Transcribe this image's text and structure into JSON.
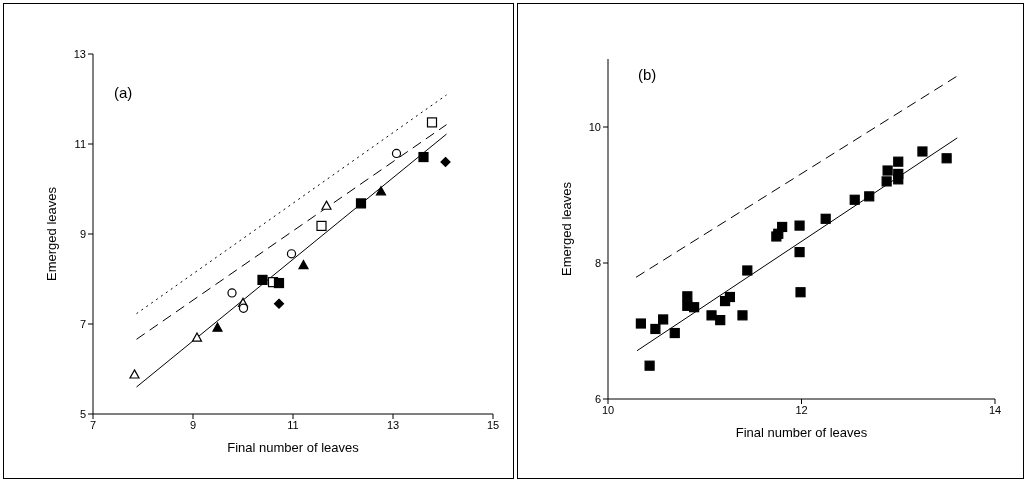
{
  "chart_data": [
    {
      "type": "scatter",
      "xlabel": "Final number of leaves",
      "ylabel": "Emerged leaves",
      "annotations": [
        "(a)"
      ],
      "xlim": [
        7,
        15
      ],
      "xticks": [
        7,
        9,
        11,
        13,
        15
      ],
      "ylim": [
        5,
        13
      ],
      "yticks": [
        5,
        7,
        9,
        11,
        13
      ],
      "series": [
        {
          "marker": "triangle",
          "color": "#ffffff",
          "x": [
            7.83,
            9.08,
            10.0,
            11.67
          ],
          "values": [
            5.88,
            6.7,
            7.47,
            9.63
          ]
        },
        {
          "marker": "circle",
          "color": "#ffffff",
          "x": [
            9.78,
            10.01,
            10.97,
            13.07
          ],
          "values": [
            7.69,
            7.35,
            8.56,
            10.79
          ]
        },
        {
          "marker": "square",
          "color": "#ffffff",
          "x": [
            10.6,
            11.57,
            13.78
          ],
          "values": [
            7.93,
            9.18,
            11.48
          ]
        },
        {
          "marker": "square",
          "color": "#000000",
          "x": [
            10.39,
            10.72,
            12.36,
            13.61
          ],
          "values": [
            7.98,
            7.91,
            9.68,
            10.71
          ]
        },
        {
          "marker": "triangle",
          "color": "#000000",
          "x": [
            9.49,
            11.21,
            12.76
          ],
          "values": [
            6.92,
            8.31,
            9.95
          ]
        },
        {
          "marker": "diamond",
          "color": "#000000",
          "x": [
            10.72,
            14.05
          ],
          "values": [
            7.45,
            10.6
          ]
        },
        {
          "type": "line",
          "line_style": "solid",
          "color": "#000000",
          "x": [
            7.87,
            14.07
          ],
          "values": [
            5.6,
            11.22
          ]
        },
        {
          "type": "line",
          "line_style": "dashed",
          "color": "#000000",
          "x": [
            7.87,
            14.07
          ],
          "values": [
            6.66,
            11.43
          ]
        },
        {
          "type": "line",
          "line_style": "dotted",
          "color": "#000000",
          "x": [
            7.87,
            14.07
          ],
          "values": [
            7.23,
            12.09
          ]
        }
      ]
    },
    {
      "type": "scatter",
      "xlabel": "Final number of leaves",
      "ylabel": "Emerged leaves",
      "annotations": [
        "(b)"
      ],
      "xlim": [
        10,
        14
      ],
      "xticks": [
        10,
        12,
        14
      ],
      "ylim": [
        6,
        11
      ],
      "yticks": [
        6,
        8,
        10
      ],
      "series": [
        {
          "marker": "square",
          "color": "#000000",
          "x": [
            10.34,
            10.43,
            10.49,
            10.57,
            10.69,
            10.82,
            10.82,
            10.89,
            11.07,
            11.16,
            11.21,
            11.26,
            11.39,
            11.44,
            11.74,
            11.76,
            11.8,
            11.98,
            11.98,
            11.99,
            12.25,
            12.55,
            12.7,
            12.88,
            12.89,
            13.0,
            13.0,
            13.0,
            13.25,
            13.5
          ],
          "values": [
            7.11,
            6.49,
            7.03,
            7.17,
            6.97,
            7.51,
            7.37,
            7.35,
            7.23,
            7.16,
            7.44,
            7.5,
            7.23,
            7.89,
            8.39,
            8.43,
            8.53,
            8.55,
            8.16,
            7.57,
            8.65,
            8.93,
            8.98,
            9.2,
            9.36,
            9.49,
            9.31,
            9.23,
            9.64,
            9.54
          ]
        },
        {
          "type": "line",
          "line_style": "solid",
          "color": "#000000",
          "x": [
            10.3,
            13.61
          ],
          "values": [
            6.71,
            9.84
          ]
        },
        {
          "type": "line",
          "line_style": "dashed",
          "color": "#000000",
          "x": [
            10.29,
            13.61
          ],
          "values": [
            7.79,
            10.75
          ]
        }
      ]
    }
  ]
}
